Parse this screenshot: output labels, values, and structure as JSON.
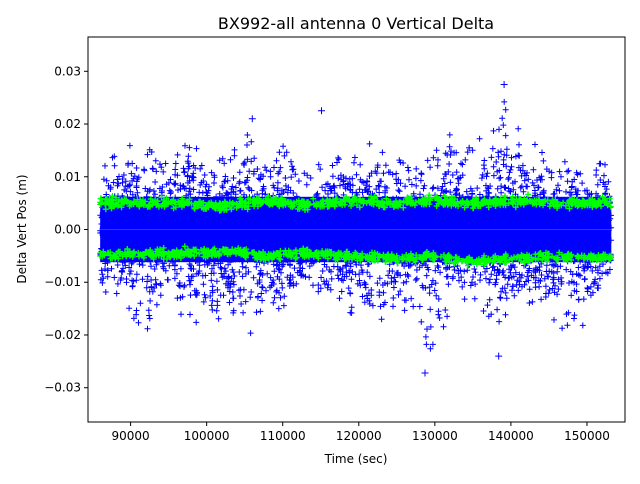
{
  "chart_data": {
    "type": "scatter",
    "title": "BX992-all antenna 0 Vertical Delta",
    "xlabel": "Time (sec)",
    "ylabel": "Delta Vert Pos (m)",
    "xlim": [
      84400,
      155000
    ],
    "ylim": [
      -0.0365,
      0.0365
    ],
    "x_ticks": [
      90000,
      100000,
      110000,
      120000,
      130000,
      140000,
      150000
    ],
    "x_tick_labels": [
      "90000",
      "100000",
      "110000",
      "120000",
      "130000",
      "140000",
      "150000"
    ],
    "y_ticks": [
      -0.03,
      -0.02,
      -0.01,
      0.0,
      0.01,
      0.02,
      0.03
    ],
    "y_tick_labels": [
      "−0.03",
      "−0.02",
      "−0.01",
      "0.00",
      "0.01",
      "0.02",
      "0.03"
    ],
    "grid": false,
    "legend": "none",
    "x_range_of_data": [
      86000,
      153200
    ],
    "series": [
      {
        "marker": "+",
        "color": "#0000ff",
        "envelope_x": [
          86000,
          90000,
          92000,
          95000,
          98000,
          100000,
          103000,
          106000,
          108000,
          111000,
          113000,
          116000,
          119000,
          122000,
          125000,
          128000,
          129000,
          132000,
          135000,
          139000,
          141000,
          144000,
          147000,
          150000,
          153200
        ],
        "envelope_upper": [
          0.012,
          0.016,
          0.018,
          0.013,
          0.017,
          0.012,
          0.014,
          0.019,
          0.011,
          0.018,
          0.01,
          0.014,
          0.013,
          0.017,
          0.015,
          0.012,
          0.013,
          0.018,
          0.015,
          0.025,
          0.019,
          0.015,
          0.016,
          0.013,
          0.013
        ],
        "envelope_lower": [
          -0.011,
          -0.016,
          -0.02,
          -0.015,
          -0.017,
          -0.019,
          -0.015,
          -0.02,
          -0.014,
          -0.016,
          -0.01,
          -0.015,
          -0.016,
          -0.018,
          -0.015,
          -0.016,
          -0.027,
          -0.015,
          -0.013,
          -0.02,
          -0.014,
          -0.016,
          -0.019,
          -0.018,
          -0.013
        ],
        "outliers": [
          {
            "x": 139100,
            "y": 0.0275
          },
          {
            "x": 138400,
            "y": -0.024
          },
          {
            "x": 128700,
            "y": -0.0272
          },
          {
            "x": 115100,
            "y": 0.0225
          },
          {
            "x": 106000,
            "y": 0.021
          }
        ]
      },
      {
        "marker": "+",
        "color": "#00ff00",
        "envelope_x": [
          86000,
          95000,
          103000,
          108000,
          113000,
          118000,
          125000,
          130000,
          134000,
          140000,
          146000,
          153200
        ],
        "upper_band": [
          0.005,
          0.005,
          0.0045,
          0.0055,
          0.0045,
          0.0055,
          0.005,
          0.0055,
          0.005,
          0.0055,
          0.005,
          0.005
        ],
        "lower_band": [
          -0.005,
          -0.0045,
          -0.0042,
          -0.005,
          -0.0045,
          -0.005,
          -0.0055,
          -0.005,
          -0.006,
          -0.0055,
          -0.005,
          -0.0055
        ]
      },
      {
        "type": "line",
        "color": "#ff0000",
        "x": [
          86000,
          153200
        ],
        "y": [
          0.0,
          0.0
        ]
      }
    ]
  }
}
